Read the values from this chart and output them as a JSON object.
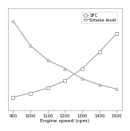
{
  "engine_speed": [
    900,
    1000,
    1100,
    1200,
    1300,
    1400,
    1500
  ],
  "sfc": [
    0.18,
    0.22,
    0.27,
    0.34,
    0.46,
    0.62,
    0.8
  ],
  "smoke": [
    0.92,
    0.68,
    0.54,
    0.46,
    0.36,
    0.3,
    0.26
  ],
  "sfc_label": "SFC",
  "smoke_label": "Smoke level",
  "xlabel": "Engine speed (rpm)",
  "sfc_marker": "s",
  "smoke_marker": "^",
  "line_color": "#999999",
  "bg_color": "#ffffff",
  "legend_fontsize": 4.0,
  "axis_label_fontsize": 4.5,
  "tick_fontsize": 3.8,
  "xlim": [
    870,
    1530
  ],
  "ylim": [
    0.05,
    1.05
  ],
  "xticks": [
    900,
    1000,
    1100,
    1200,
    1300,
    1400,
    1500
  ]
}
